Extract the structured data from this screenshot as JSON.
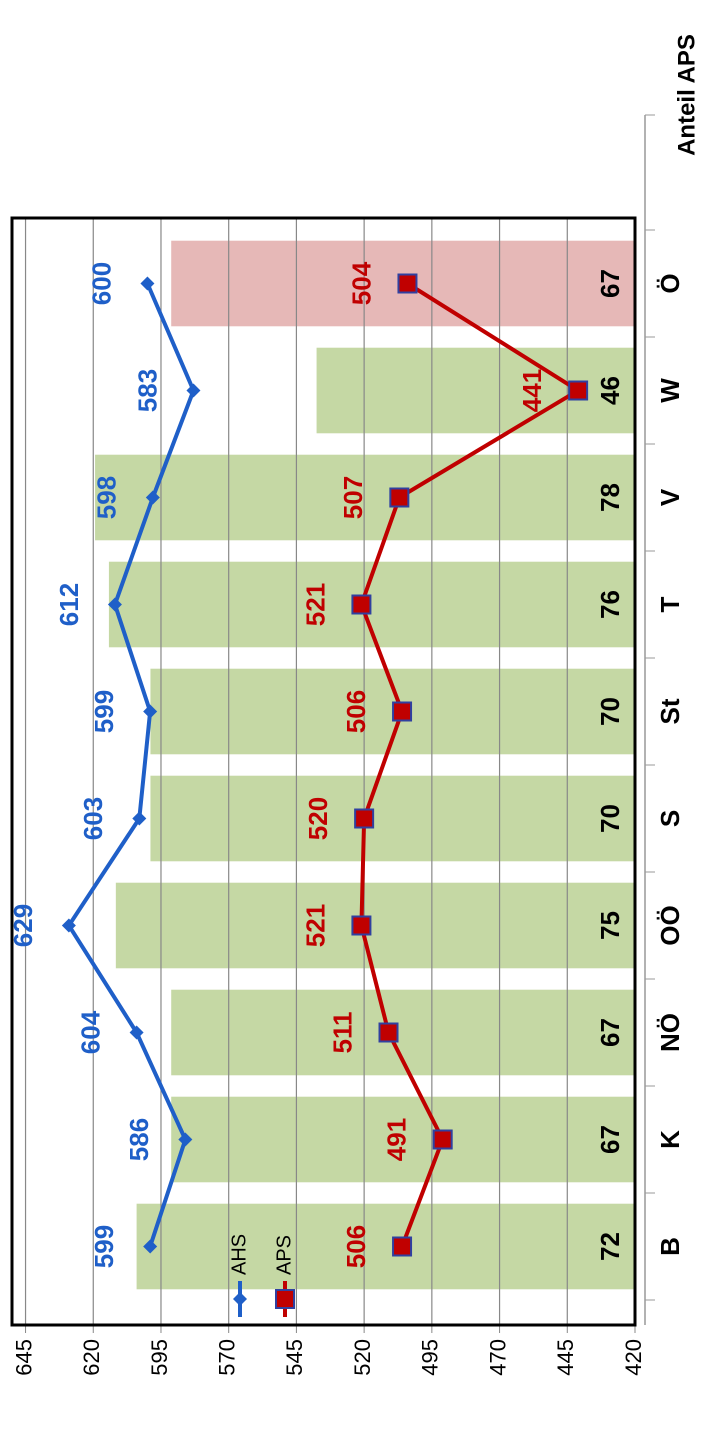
{
  "chart_data": {
    "type": "line",
    "categories": [
      "B",
      "K",
      "NÖ",
      "OÖ",
      "S",
      "St",
      "T",
      "V",
      "W",
      "Ö"
    ],
    "series": [
      {
        "name": "AHS",
        "color": "#1f5fc8",
        "values": [
          599,
          586,
          604,
          629,
          603,
          599,
          612,
          598,
          583,
          600
        ]
      },
      {
        "name": "APS",
        "color": "#c00000",
        "values": [
          506,
          491,
          511,
          521,
          520,
          506,
          521,
          507,
          441,
          504
        ]
      }
    ],
    "bars": {
      "axis": "y2",
      "values": [
        72,
        67,
        67,
        75,
        70,
        70,
        76,
        78,
        46,
        67
      ],
      "colors": [
        "#c5d8a4",
        "#c5d8a4",
        "#c5d8a4",
        "#c5d8a4",
        "#c5d8a4",
        "#c5d8a4",
        "#c5d8a4",
        "#c5d8a4",
        "#c5d8a4",
        "#e6b8b7"
      ]
    },
    "y2label": "Anteil APS",
    "ylim": [
      420,
      650
    ],
    "yticks": [
      420,
      445,
      470,
      495,
      520,
      545,
      570,
      595,
      620,
      645
    ],
    "y2lim": [
      0,
      90
    ],
    "grid": true,
    "legend": "lower left"
  }
}
